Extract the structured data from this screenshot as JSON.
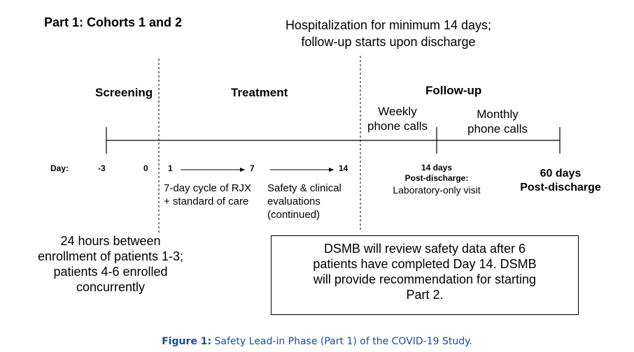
{
  "part_title": "Part 1: Cohorts 1 and 2",
  "hospitalization": {
    "line1": "Hospitalization for minimum 14 days;",
    "line2": "follow-up starts upon discharge"
  },
  "phases": {
    "screening": "Screening",
    "treatment": "Treatment",
    "follow_up": "Follow-up"
  },
  "weekly_calls": [
    "Weekly",
    "phone calls"
  ],
  "monthly_calls": [
    "Monthly",
    "phone calls"
  ],
  "day_row": {
    "label": "Day:",
    "minus3": "-3",
    "zero": "0",
    "one": "1",
    "seven": "7",
    "fourteen": "14"
  },
  "fourteen_days": {
    "line1": "14 days",
    "line2": "Post-discharge:",
    "line3": "Laboratory-only visit"
  },
  "sixty_days": {
    "line1": "60 days",
    "line2": "Post-discharge"
  },
  "cycle": {
    "line1": "7-day cycle of RJX",
    "line2": "+ standard of care"
  },
  "safety": {
    "line1": "Safety & clinical",
    "line2": "evaluations",
    "line3": "(continued)"
  },
  "enrollment": {
    "line1": "24 hours between",
    "line2": "enrollment of patients 1-3;",
    "line3": "patients 4-6 enrolled",
    "line4": "concurrently"
  },
  "dsmb": {
    "line1": "DSMB will review safety data after 6",
    "line2": "patients have completed Day 14. DSMB",
    "line3": "will provide recommendation for starting",
    "line4": "Part 2."
  },
  "caption": {
    "label": "Figure 1:",
    "text": " Safety Lead-in Phase (Part 1) of the COVID-19 Study."
  },
  "colors": {
    "caption": "#1c4e8f",
    "line": "#000000"
  }
}
